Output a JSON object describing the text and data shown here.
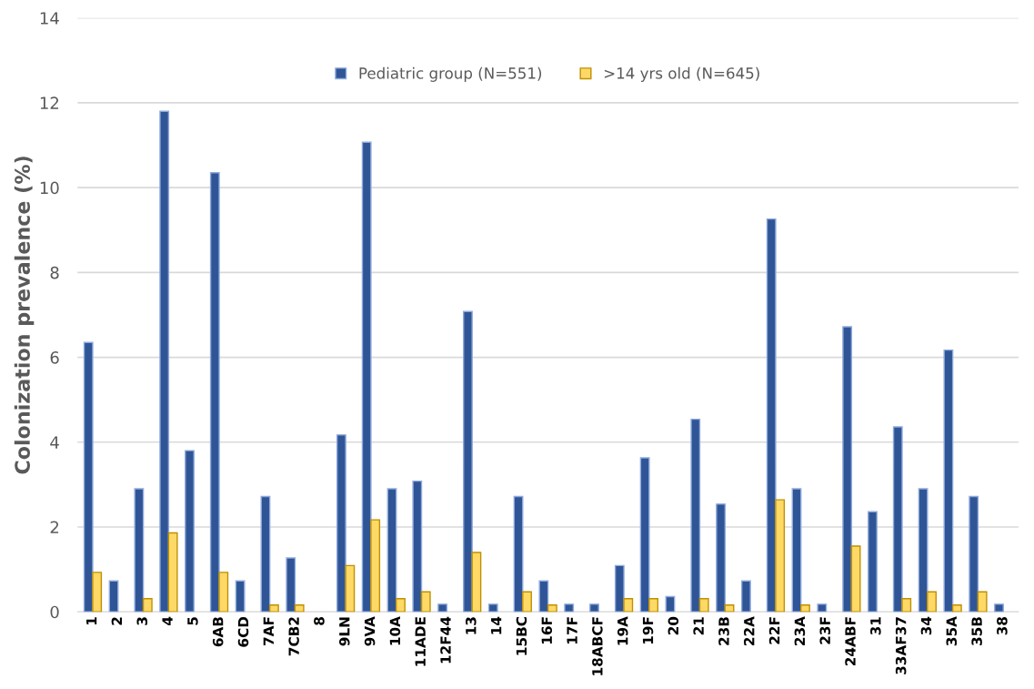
{
  "chart_data": {
    "type": "bar",
    "ylabel": "Colonization prevalence (%)",
    "categories": [
      "1",
      "2",
      "3",
      "4",
      "5",
      "6AB",
      "6CD",
      "7AF",
      "7CB2",
      "8",
      "9LN",
      "9VA",
      "10A",
      "11ADE",
      "12F44",
      "13",
      "14",
      "15BC",
      "16F",
      "17F",
      "18ABCF",
      "19A",
      "19F",
      "20",
      "21",
      "23B",
      "22A",
      "22F",
      "23A",
      "23F",
      "24ABF",
      "31",
      "33AF37",
      "34",
      "35A",
      "35B",
      "38"
    ],
    "series": [
      {
        "name": "Pediatric group (N=551)",
        "color": "#2f5597",
        "values": [
          6.35,
          0.73,
          2.9,
          11.8,
          3.8,
          10.35,
          0.73,
          2.72,
          1.27,
          0,
          4.17,
          11.07,
          2.9,
          3.08,
          0.18,
          7.08,
          0.18,
          2.72,
          0.73,
          0.18,
          0.18,
          1.09,
          3.63,
          0.36,
          4.54,
          2.54,
          0.73,
          9.26,
          2.9,
          0.18,
          6.72,
          2.36,
          4.36,
          2.9,
          6.17,
          2.72,
          0.18
        ]
      },
      {
        "name": ">14 yrs old (N=645)",
        "color": "#ffd966",
        "values": [
          0.93,
          0,
          0.31,
          1.86,
          0,
          0.93,
          0,
          0.16,
          0.16,
          0,
          1.09,
          2.17,
          0.31,
          0.47,
          0,
          1.4,
          0,
          0.47,
          0.16,
          0,
          0,
          0.31,
          0.31,
          0,
          0.31,
          0.16,
          0,
          2.64,
          0.16,
          0,
          1.55,
          0,
          0.31,
          0.47,
          0.16,
          0.47,
          0
        ]
      }
    ],
    "ylim": [
      0,
      14
    ],
    "yticks": [
      0,
      2,
      4,
      6,
      8,
      10,
      12,
      14
    ],
    "grid": "y",
    "legend": "top"
  }
}
